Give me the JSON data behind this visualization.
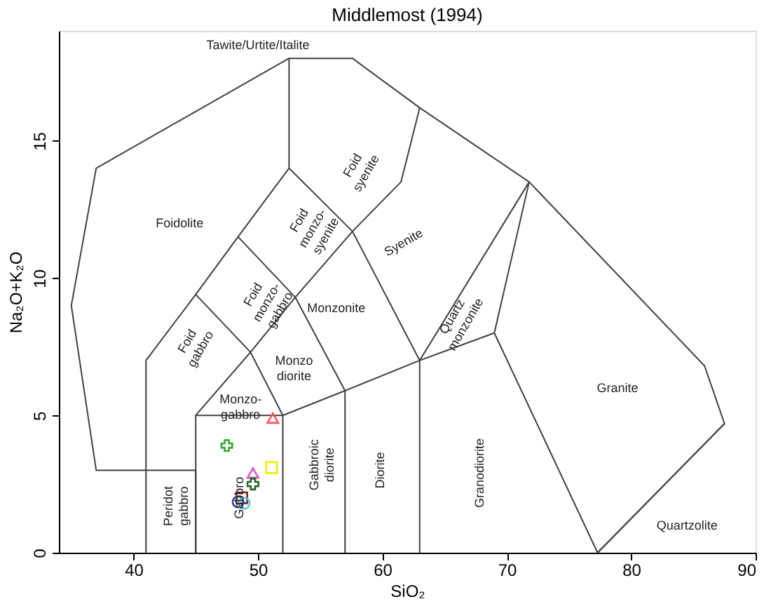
{
  "chart_data": {
    "type": "scatter",
    "title": "Middlemost (1994)",
    "xlabel": "SiO₂",
    "ylabel": "Na₂O+K₂O",
    "xlim": [
      34,
      90
    ],
    "ylim": [
      0,
      19
    ],
    "xticks": [
      40,
      50,
      60,
      70,
      80,
      90
    ],
    "yticks": [
      0,
      5,
      10,
      15
    ],
    "grid": false,
    "series": [
      {
        "type": "line",
        "color": "#404040",
        "x": [
          41,
          37,
          35,
          37,
          52.5,
          57.6,
          63,
          71.8,
          85.9,
          87.5,
          77.3
        ],
        "values": [
          3,
          3,
          9,
          14,
          18,
          18,
          16.2,
          13.5,
          6.8,
          4.7,
          0
        ]
      },
      {
        "type": "line",
        "color": "#404040",
        "x": [
          77.3,
          69,
          71.8
        ],
        "values": [
          0,
          8,
          13.5
        ]
      },
      {
        "type": "line",
        "color": "#404040",
        "x": [
          41,
          41,
          45,
          45
        ],
        "values": [
          0,
          3,
          3,
          0
        ]
      },
      {
        "type": "line",
        "color": "#404040",
        "x": [
          45,
          45,
          52,
          52
        ],
        "values": [
          0,
          5,
          5,
          0
        ]
      },
      {
        "type": "line",
        "color": "#404040",
        "x": [
          41,
          41,
          45,
          48.4,
          52.5,
          52.5
        ],
        "values": [
          3,
          7,
          9.4,
          11.5,
          14,
          18
        ]
      },
      {
        "type": "line",
        "color": "#404040",
        "x": [
          45,
          49.4,
          53,
          57.6,
          61.5,
          63
        ],
        "values": [
          5,
          7.3,
          9.3,
          11.7,
          13.5,
          16.2
        ]
      },
      {
        "type": "line",
        "color": "#404040",
        "x": [
          52,
          57,
          63,
          69
        ],
        "values": [
          5,
          5.9,
          7,
          8
        ]
      },
      {
        "type": "line",
        "color": "#404040",
        "x": [
          57,
          57
        ],
        "values": [
          0,
          5.9
        ]
      },
      {
        "type": "line",
        "color": "#404040",
        "x": [
          63,
          63
        ],
        "values": [
          0,
          7
        ]
      },
      {
        "type": "line",
        "color": "#404040",
        "x": [
          45,
          49.4,
          52
        ],
        "values": [
          9.4,
          7.3,
          5
        ]
      },
      {
        "type": "line",
        "color": "#404040",
        "x": [
          48.4,
          53,
          57
        ],
        "values": [
          11.5,
          9.3,
          5.9
        ]
      },
      {
        "type": "line",
        "color": "#404040",
        "x": [
          52.5,
          57.6,
          63
        ],
        "values": [
          14,
          11.7,
          7
        ]
      },
      {
        "type": "line",
        "color": "#404040",
        "x": [
          63,
          71.8
        ],
        "values": [
          7,
          13.5
        ]
      },
      {
        "type": "line",
        "color": "#404040",
        "x": [
          77.3,
          87.5
        ],
        "values": [
          0,
          4.7
        ]
      },
      {
        "marker": "cross",
        "color": "#33aa33",
        "x": [
          47.5
        ],
        "values": [
          3.9
        ]
      },
      {
        "marker": "triangle",
        "color": "#ff5555",
        "x": [
          51.2
        ],
        "values": [
          4.9
        ]
      },
      {
        "marker": "square",
        "color": "#eeee00",
        "x": [
          51.1
        ],
        "values": [
          3.1
        ]
      },
      {
        "marker": "triangle",
        "color": "#dd55cc",
        "x": [
          49.6
        ],
        "values": [
          2.9
        ]
      },
      {
        "marker": "cross",
        "color": "#226622",
        "x": [
          49.6
        ],
        "values": [
          2.5
        ]
      },
      {
        "marker": "square",
        "color": "#8b1a1a",
        "x": [
          48.7
        ],
        "values": [
          2.0
        ]
      },
      {
        "marker": "circle",
        "color": "#2244aa",
        "x": [
          48.4
        ],
        "values": [
          1.85
        ]
      },
      {
        "marker": "circle",
        "color": "#55ccdd",
        "x": [
          48.9
        ],
        "values": [
          1.8
        ]
      }
    ],
    "annotations": [
      "Tawite/Urtite/Italite",
      "Foidolite",
      "Foid\nsyenite",
      "Foid\nmonzo-\nsyenite",
      "Foid\nmonzo-\ngabbro",
      "Foid\ngabbro",
      "Syenite",
      "Quartz\nmonzonite",
      "Monzonite",
      "Monzo\ndiorite",
      "Monzo-\ngabbro",
      "Granite",
      "Quartzolite",
      "Peridot\ngabbro",
      "Gabbro",
      "Gabbroic\ndiorite",
      "Diorite",
      "Granodiorite"
    ]
  }
}
